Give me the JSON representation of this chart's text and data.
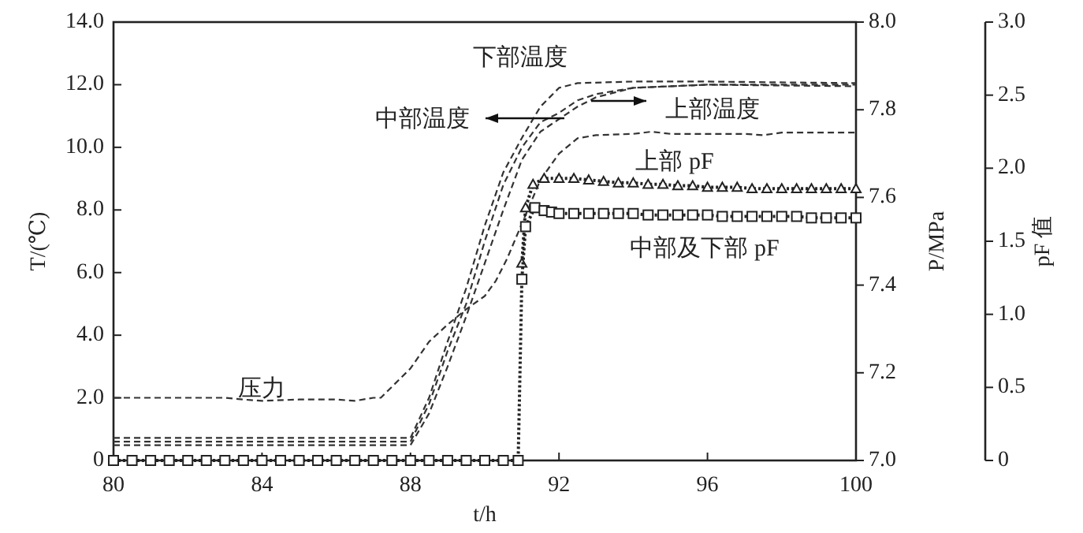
{
  "chart_data": {
    "type": "line",
    "xlabel": "t/h",
    "ylabel": "T/(℃)",
    "y2label": "P/MPa",
    "y3label": "pF 值",
    "xlim": [
      80,
      100
    ],
    "xticks": [
      80,
      84,
      88,
      92,
      96,
      100
    ],
    "ylim": [
      0,
      14
    ],
    "yticks": [
      0,
      {
        "value": 2,
        "label": "2.0"
      },
      {
        "value": 4,
        "label": "4.0"
      },
      {
        "value": 6,
        "label": "6.0"
      },
      {
        "value": 8,
        "label": "8.0"
      },
      {
        "value": 10,
        "label": "10.0"
      },
      {
        "value": 12,
        "label": "12.0"
      },
      {
        "value": 14,
        "label": "14.0"
      }
    ],
    "y2lim": [
      7.0,
      8.0
    ],
    "y2ticks": [
      {
        "value": 7,
        "label": "7.0"
      },
      7.2,
      7.4,
      7.6,
      7.8,
      {
        "value": 8,
        "label": "8.0"
      }
    ],
    "y3lim": [
      0,
      3.0
    ],
    "y3ticks": [
      0,
      0.5,
      {
        "value": 1,
        "label": "1.0"
      },
      1.5,
      {
        "value": 2,
        "label": "2.0"
      },
      2.5,
      {
        "value": 3,
        "label": "3.0"
      }
    ],
    "grid": false,
    "legend": false,
    "series": [
      {
        "name": "下部温度",
        "color": "#333333",
        "line_style": "dashed",
        "marker": "none",
        "axis": "y",
        "x": [
          80,
          84,
          88,
          88.5,
          89,
          89.5,
          90,
          90.5,
          91,
          91.5,
          92,
          92.5,
          94,
          96,
          100
        ],
        "values": [
          0.72,
          0.72,
          0.72,
          2.0,
          3.8,
          5.5,
          7.5,
          9.2,
          10.3,
          11.3,
          11.9,
          12.05,
          12.1,
          12.1,
          12.05
        ]
      },
      {
        "name": "中部温度",
        "color": "#333333",
        "line_style": "dashed",
        "marker": "none",
        "axis": "y",
        "x": [
          80,
          84,
          88,
          88.5,
          89,
          89.5,
          90,
          90.5,
          91,
          91.5,
          92,
          92.5,
          93,
          94,
          96,
          100
        ],
        "values": [
          0.6,
          0.6,
          0.6,
          1.8,
          3.5,
          5.0,
          7.0,
          8.8,
          10.0,
          10.8,
          11.1,
          11.5,
          11.7,
          11.9,
          12.0,
          12.0
        ]
      },
      {
        "name": "上部温度",
        "color": "#333333",
        "line_style": "dashed",
        "marker": "none",
        "axis": "y",
        "x": [
          80,
          84,
          88,
          88.5,
          89,
          89.5,
          90,
          90.5,
          91,
          91.5,
          92,
          92.5,
          93,
          94,
          96,
          100
        ],
        "values": [
          0.49,
          0.49,
          0.49,
          1.5,
          3.0,
          4.6,
          6.3,
          8.0,
          9.6,
          10.5,
          10.9,
          11.3,
          11.6,
          11.9,
          12.0,
          11.95
        ]
      },
      {
        "name": "压力",
        "color": "#333333",
        "line_style": "dashed",
        "marker": "none",
        "axis": "y2",
        "x": [
          80,
          81,
          82,
          83,
          83.5,
          84,
          85,
          86,
          86.5,
          87,
          87.2,
          88,
          88.5,
          89,
          89.5,
          90,
          90.3,
          90.6,
          91,
          91.5,
          92,
          92.5,
          93,
          94,
          94.5,
          95,
          96,
          97,
          97.5,
          98,
          99,
          100
        ],
        "values": [
          7.143,
          7.143,
          7.143,
          7.143,
          7.139,
          7.136,
          7.139,
          7.139,
          7.136,
          7.143,
          7.143,
          7.21,
          7.271,
          7.31,
          7.345,
          7.375,
          7.41,
          7.46,
          7.54,
          7.64,
          7.7,
          7.735,
          7.742,
          7.745,
          7.75,
          7.745,
          7.745,
          7.745,
          7.742,
          7.748,
          7.748,
          7.748
        ]
      },
      {
        "name": "上部 pF",
        "color": "#222222",
        "line_style": "dotted",
        "marker": "triangle",
        "axis": "y3",
        "x": [
          91.0,
          91.1,
          91.3,
          91.6,
          92,
          92.4,
          92.8,
          93.2,
          93.6,
          94,
          94.4,
          94.8,
          95.2,
          95.6,
          96,
          96.4,
          96.8,
          97.2,
          97.6,
          98,
          98.4,
          98.8,
          99.2,
          99.6,
          100
        ],
        "values": [
          1.35,
          1.73,
          1.89,
          1.93,
          1.93,
          1.93,
          1.92,
          1.91,
          1.9,
          1.9,
          1.89,
          1.89,
          1.88,
          1.88,
          1.87,
          1.87,
          1.87,
          1.86,
          1.86,
          1.86,
          1.86,
          1.86,
          1.86,
          1.86,
          1.86
        ]
      },
      {
        "name": "中部及下部 pF",
        "color": "#222222",
        "line_style": "dotted",
        "marker": "square",
        "axis": "y3",
        "x": [
          80,
          80.5,
          81,
          81.5,
          82,
          82.5,
          83,
          83.5,
          84,
          84.5,
          85,
          85.5,
          86,
          86.5,
          87,
          87.5,
          88,
          88.5,
          89,
          89.5,
          90,
          90.5,
          90.9,
          91.0,
          91.1,
          91.35,
          91.6,
          91.8,
          92,
          92.4,
          92.8,
          93.2,
          93.6,
          94,
          94.4,
          94.8,
          95.2,
          95.6,
          96,
          96.4,
          96.8,
          97.2,
          97.6,
          98,
          98.4,
          98.8,
          99.2,
          99.6,
          100
        ],
        "values": [
          0,
          0,
          0,
          0,
          0,
          0,
          0,
          0,
          0,
          0,
          0,
          0,
          0,
          0,
          0,
          0,
          0,
          0,
          0,
          0,
          0,
          0,
          0,
          1.24,
          1.6,
          1.73,
          1.71,
          1.7,
          1.69,
          1.69,
          1.69,
          1.69,
          1.69,
          1.69,
          1.68,
          1.68,
          1.68,
          1.68,
          1.68,
          1.67,
          1.67,
          1.67,
          1.67,
          1.67,
          1.67,
          1.66,
          1.66,
          1.66,
          1.66
        ]
      }
    ]
  }
}
